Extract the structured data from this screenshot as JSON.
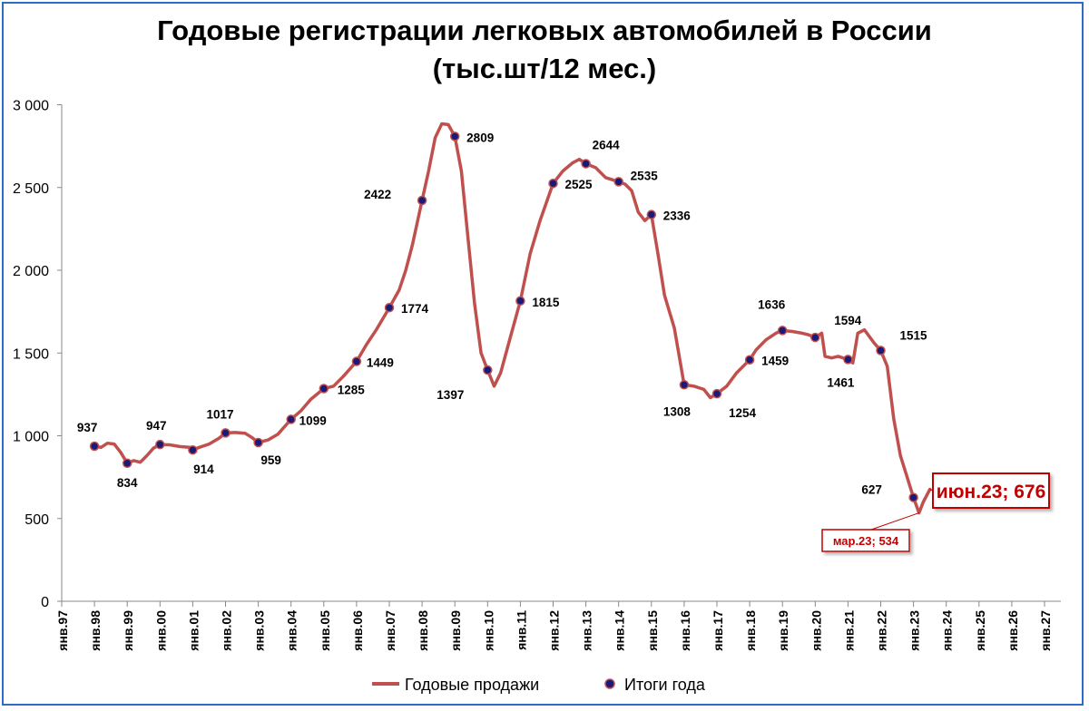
{
  "chart_data": {
    "type": "line",
    "title_line1": "Годовые регистрации легковых автомобилей в России",
    "title_line2": "(тыс.шт/12 мес.)",
    "ylim": [
      0,
      3000
    ],
    "y_ticks": [
      0,
      500,
      1000,
      1500,
      2000,
      2500,
      3000
    ],
    "y_tick_labels": [
      "0",
      "500",
      "1 000",
      "1 500",
      "2 000",
      "2 500",
      "3 000"
    ],
    "x_ticks": [
      1997,
      1998,
      1999,
      2000,
      2001,
      2002,
      2003,
      2004,
      2005,
      2006,
      2007,
      2008,
      2009,
      2010,
      2011,
      2012,
      2013,
      2014,
      2015,
      2016,
      2017,
      2018,
      2019,
      2020,
      2021,
      2022,
      2023,
      2024,
      2025,
      2026,
      2027
    ],
    "x_tick_labels": [
      "янв.97",
      "янв.98",
      "янв.99",
      "янв.00",
      "янв.01",
      "янв.02",
      "янв.03",
      "янв.04",
      "янв.05",
      "янв.06",
      "янв.07",
      "янв.08",
      "янв.09",
      "янв.10",
      "янв.11",
      "янв.12",
      "янв.13",
      "янв.14",
      "янв.15",
      "янв.16",
      "янв.17",
      "янв.18",
      "янв.19",
      "янв.20",
      "янв.21",
      "янв.22",
      "янв.23",
      "янв.24",
      "янв.25",
      "янв.26",
      "янв.27"
    ],
    "series": [
      {
        "name": "Годовые продажи",
        "color": "#c0504d",
        "points": [
          [
            1998.0,
            937
          ],
          [
            1998.2,
            930
          ],
          [
            1998.4,
            955
          ],
          [
            1998.6,
            950
          ],
          [
            1998.8,
            900
          ],
          [
            1999.0,
            834
          ],
          [
            1999.2,
            850
          ],
          [
            1999.4,
            840
          ],
          [
            1999.6,
            880
          ],
          [
            1999.8,
            925
          ],
          [
            2000.0,
            947
          ],
          [
            2000.3,
            945
          ],
          [
            2000.6,
            935
          ],
          [
            2000.9,
            930
          ],
          [
            2001.0,
            914
          ],
          [
            2001.2,
            930
          ],
          [
            2001.5,
            950
          ],
          [
            2001.8,
            985
          ],
          [
            2002.0,
            1017
          ],
          [
            2002.3,
            1020
          ],
          [
            2002.6,
            1015
          ],
          [
            2002.8,
            990
          ],
          [
            2003.0,
            959
          ],
          [
            2003.3,
            975
          ],
          [
            2003.6,
            1010
          ],
          [
            2004.0,
            1099
          ],
          [
            2004.3,
            1150
          ],
          [
            2004.6,
            1220
          ],
          [
            2005.0,
            1285
          ],
          [
            2005.3,
            1300
          ],
          [
            2005.6,
            1360
          ],
          [
            2006.0,
            1449
          ],
          [
            2006.3,
            1550
          ],
          [
            2006.6,
            1640
          ],
          [
            2007.0,
            1774
          ],
          [
            2007.3,
            1880
          ],
          [
            2007.5,
            2000
          ],
          [
            2007.7,
            2150
          ],
          [
            2008.0,
            2422
          ],
          [
            2008.2,
            2600
          ],
          [
            2008.4,
            2800
          ],
          [
            2008.6,
            2885
          ],
          [
            2008.8,
            2880
          ],
          [
            2009.0,
            2809
          ],
          [
            2009.2,
            2600
          ],
          [
            2009.4,
            2200
          ],
          [
            2009.6,
            1800
          ],
          [
            2009.8,
            1500
          ],
          [
            2010.0,
            1397
          ],
          [
            2010.2,
            1300
          ],
          [
            2010.4,
            1380
          ],
          [
            2010.7,
            1600
          ],
          [
            2011.0,
            1815
          ],
          [
            2011.3,
            2100
          ],
          [
            2011.6,
            2300
          ],
          [
            2012.0,
            2525
          ],
          [
            2012.3,
            2600
          ],
          [
            2012.6,
            2650
          ],
          [
            2012.8,
            2670
          ],
          [
            2013.0,
            2644
          ],
          [
            2013.3,
            2620
          ],
          [
            2013.6,
            2560
          ],
          [
            2014.0,
            2535
          ],
          [
            2014.2,
            2520
          ],
          [
            2014.4,
            2480
          ],
          [
            2014.6,
            2350
          ],
          [
            2014.8,
            2300
          ],
          [
            2015.0,
            2336
          ],
          [
            2015.2,
            2100
          ],
          [
            2015.4,
            1850
          ],
          [
            2015.7,
            1650
          ],
          [
            2016.0,
            1308
          ],
          [
            2016.3,
            1300
          ],
          [
            2016.6,
            1280
          ],
          [
            2016.8,
            1230
          ],
          [
            2017.0,
            1254
          ],
          [
            2017.3,
            1300
          ],
          [
            2017.6,
            1380
          ],
          [
            2018.0,
            1459
          ],
          [
            2018.2,
            1520
          ],
          [
            2018.5,
            1580
          ],
          [
            2018.8,
            1620
          ],
          [
            2019.0,
            1636
          ],
          [
            2019.3,
            1630
          ],
          [
            2019.6,
            1620
          ],
          [
            2019.8,
            1610
          ],
          [
            2020.0,
            1594
          ],
          [
            2020.2,
            1620
          ],
          [
            2020.3,
            1480
          ],
          [
            2020.5,
            1470
          ],
          [
            2020.7,
            1480
          ],
          [
            2021.0,
            1461
          ],
          [
            2021.15,
            1440
          ],
          [
            2021.3,
            1620
          ],
          [
            2021.5,
            1640
          ],
          [
            2021.8,
            1560
          ],
          [
            2022.0,
            1515
          ],
          [
            2022.2,
            1420
          ],
          [
            2022.4,
            1100
          ],
          [
            2022.6,
            880
          ],
          [
            2023.0,
            627
          ],
          [
            2023.17,
            534
          ],
          [
            2023.3,
            600
          ],
          [
            2023.5,
            676
          ]
        ]
      },
      {
        "name": "Итоги года",
        "color": "#1a1a7a",
        "points": [
          [
            1998,
            937
          ],
          [
            1999,
            834
          ],
          [
            2000,
            947
          ],
          [
            2001,
            914
          ],
          [
            2002,
            1017
          ],
          [
            2003,
            959
          ],
          [
            2004,
            1099
          ],
          [
            2005,
            1285
          ],
          [
            2006,
            1449
          ],
          [
            2007,
            1774
          ],
          [
            2008,
            2422
          ],
          [
            2009,
            2809
          ],
          [
            2010,
            1397
          ],
          [
            2011,
            1815
          ],
          [
            2012,
            2525
          ],
          [
            2013,
            2644
          ],
          [
            2014,
            2535
          ],
          [
            2015,
            2336
          ],
          [
            2016,
            1308
          ],
          [
            2017,
            1254
          ],
          [
            2018,
            1459
          ],
          [
            2019,
            1636
          ],
          [
            2020,
            1594
          ],
          [
            2021,
            1461
          ],
          [
            2022,
            1515
          ],
          [
            2023,
            627
          ]
        ]
      }
    ],
    "annotations": [
      {
        "text": "июн.23; 676",
        "x": 2023.5,
        "y": 676,
        "style": "big"
      },
      {
        "text": "мар.23; 534",
        "x": 2023.17,
        "y": 534,
        "style": "small"
      }
    ],
    "legend_position": "bottom-center",
    "grid": false
  }
}
